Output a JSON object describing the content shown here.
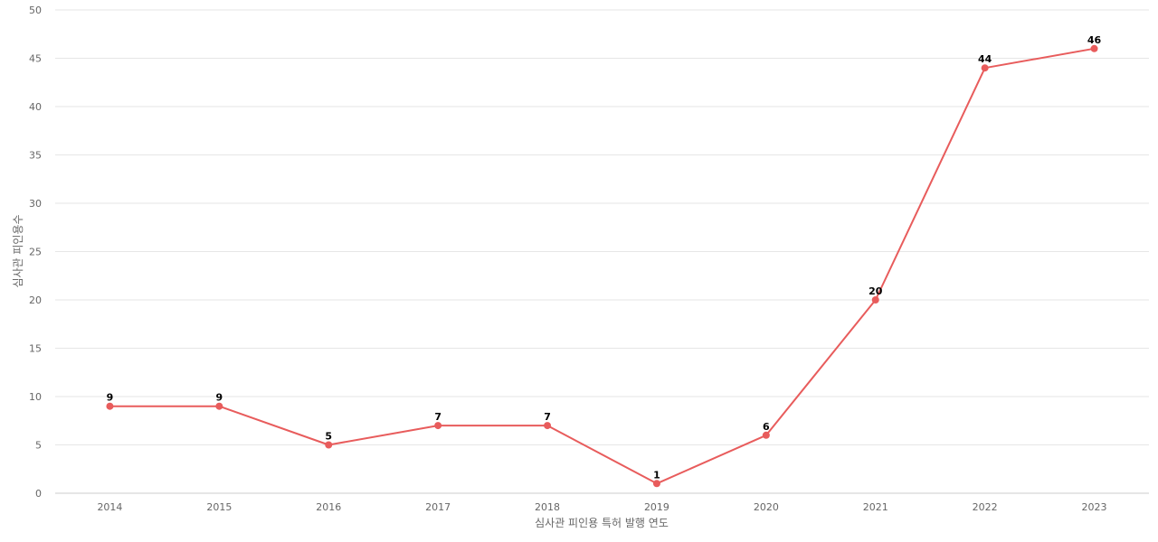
{
  "chart_data": {
    "type": "line",
    "title": "",
    "xlabel": "심사관 피인용 특허 발행 연도",
    "ylabel": "심사관 피인용수",
    "categories": [
      "2014",
      "2015",
      "2016",
      "2017",
      "2018",
      "2019",
      "2020",
      "2021",
      "2022",
      "2023"
    ],
    "series": [
      {
        "values": [
          9,
          9,
          5,
          7,
          7,
          1,
          6,
          20,
          44,
          46
        ],
        "color": "#e85c5c"
      }
    ],
    "ylim": [
      0,
      50
    ],
    "yticks": [
      0,
      5,
      10,
      15,
      20,
      25,
      30,
      35,
      40,
      45,
      50
    ],
    "grid": true,
    "data_labels": true
  }
}
